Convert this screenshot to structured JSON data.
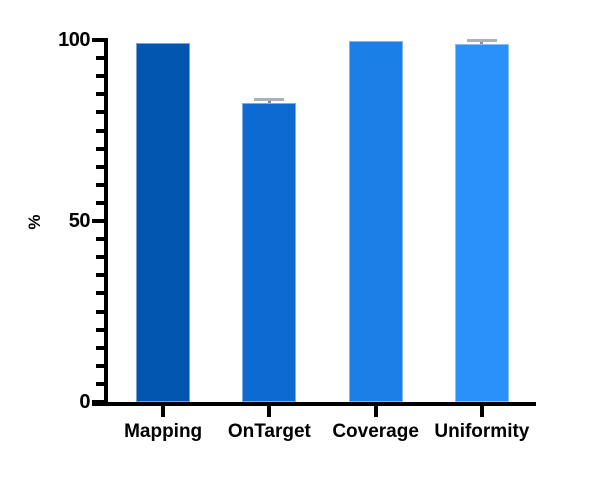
{
  "chart_data": {
    "type": "bar",
    "categories": [
      "Mapping",
      "OnTarget",
      "Coverage",
      "Uniformity"
    ],
    "values": [
      99.2,
      82.5,
      99.8,
      98.8
    ],
    "errors": [
      0,
      1.1,
      0,
      1
    ],
    "title": "",
    "xlabel": "",
    "ylabel": "%",
    "ylim": [
      0,
      100
    ],
    "ytick_values": [
      0,
      50,
      100
    ],
    "ytick_labels": [
      "0",
      "50",
      "100"
    ],
    "minor_tick_step": 5,
    "grid": false,
    "legend": "none",
    "bar_colors": [
      "#0356b0",
      "#0c6ad0",
      "#1c7fe8",
      "#2a91fb"
    ],
    "error_cap_color": "#aab0bc",
    "error_stem_color": "#858e9c",
    "axis_color": "#000000",
    "background_color": "#ffffff"
  }
}
